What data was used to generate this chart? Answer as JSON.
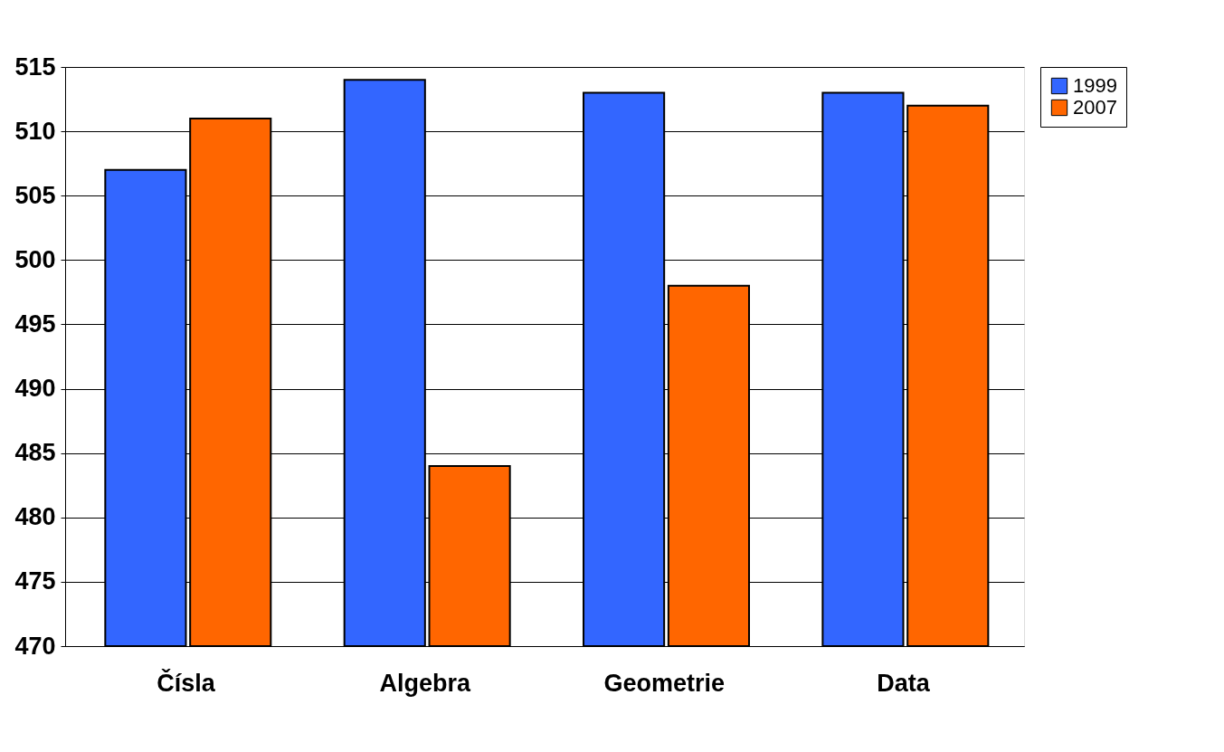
{
  "chart_data": {
    "type": "bar",
    "categories": [
      "Čísla",
      "Algebra",
      "Geometrie",
      "Data"
    ],
    "series": [
      {
        "name": "1999",
        "color": "#3366ff",
        "values": [
          507,
          514,
          513,
          513
        ]
      },
      {
        "name": "2007",
        "color": "#ff6600",
        "values": [
          511,
          484,
          498,
          512
        ]
      }
    ],
    "ylim": [
      470,
      515
    ],
    "yticks": [
      470,
      475,
      480,
      485,
      490,
      495,
      500,
      505,
      510,
      515
    ],
    "grid": "y",
    "legend": "right"
  }
}
